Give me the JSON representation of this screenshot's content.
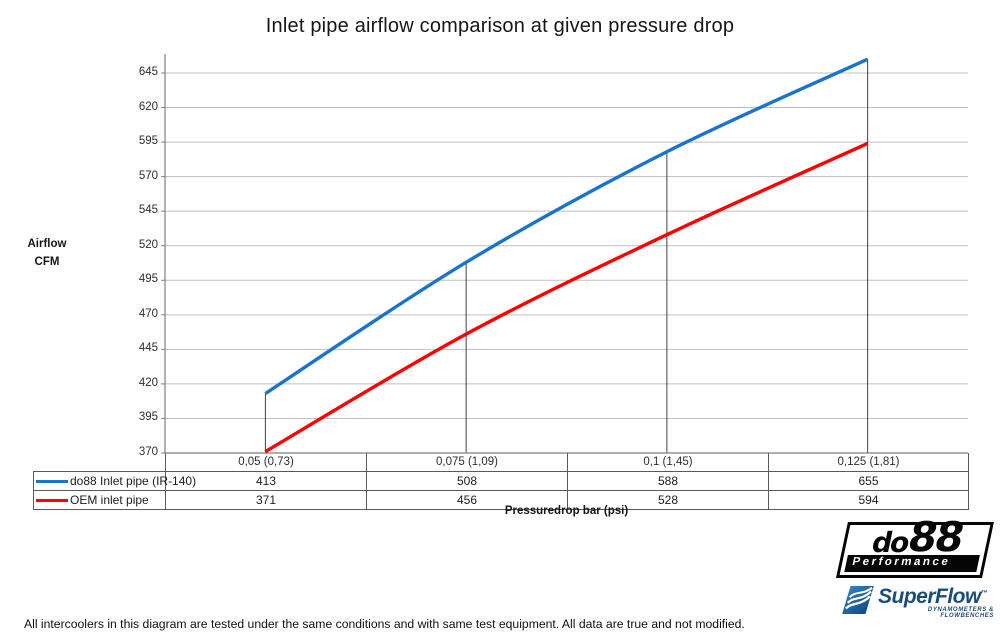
{
  "title": "Inlet pipe airflow comparison at given pressure drop",
  "footer": "All intercoolers in this diagram are tested under the same conditions and with same test equipment. All data are true and not modified.",
  "chart_data": {
    "type": "line",
    "title": "Inlet pipe airflow comparison at given pressure drop",
    "categories": [
      "0,05 (0,73)",
      "0,075 (1,09)",
      "0,1 (1,45)",
      "0,125 (1,81)"
    ],
    "series": [
      {
        "name": "do88 Inlet pipe (IR-140)",
        "color": "#1B74CC",
        "values": [
          413,
          508,
          588,
          655
        ]
      },
      {
        "name": "OEM inlet pipe",
        "color": "#FE0000",
        "values": [
          371,
          456,
          528,
          594
        ]
      }
    ],
    "ylabel": "Airflow\nCFM",
    "xlabel": "Pressuredrop bar (psi)",
    "yticks": [
      370,
      395,
      420,
      445,
      470,
      495,
      520,
      545,
      570,
      595,
      620,
      645
    ],
    "ylim": [
      370,
      658
    ],
    "grid": true,
    "grid_color": "#BFBFBF",
    "axis_color": "#7f7f7f",
    "dropline_color": "#404040",
    "legend_position": "table-left",
    "smooth_lines": true
  },
  "logos": {
    "do88": {
      "name_do": "do",
      "name_88": "88",
      "subtitle": "Performance"
    },
    "superflow": {
      "name": "SuperFlow",
      "tm": "™",
      "subtitle": "DYNAMOMETERS & FLOWBENCHES"
    }
  }
}
